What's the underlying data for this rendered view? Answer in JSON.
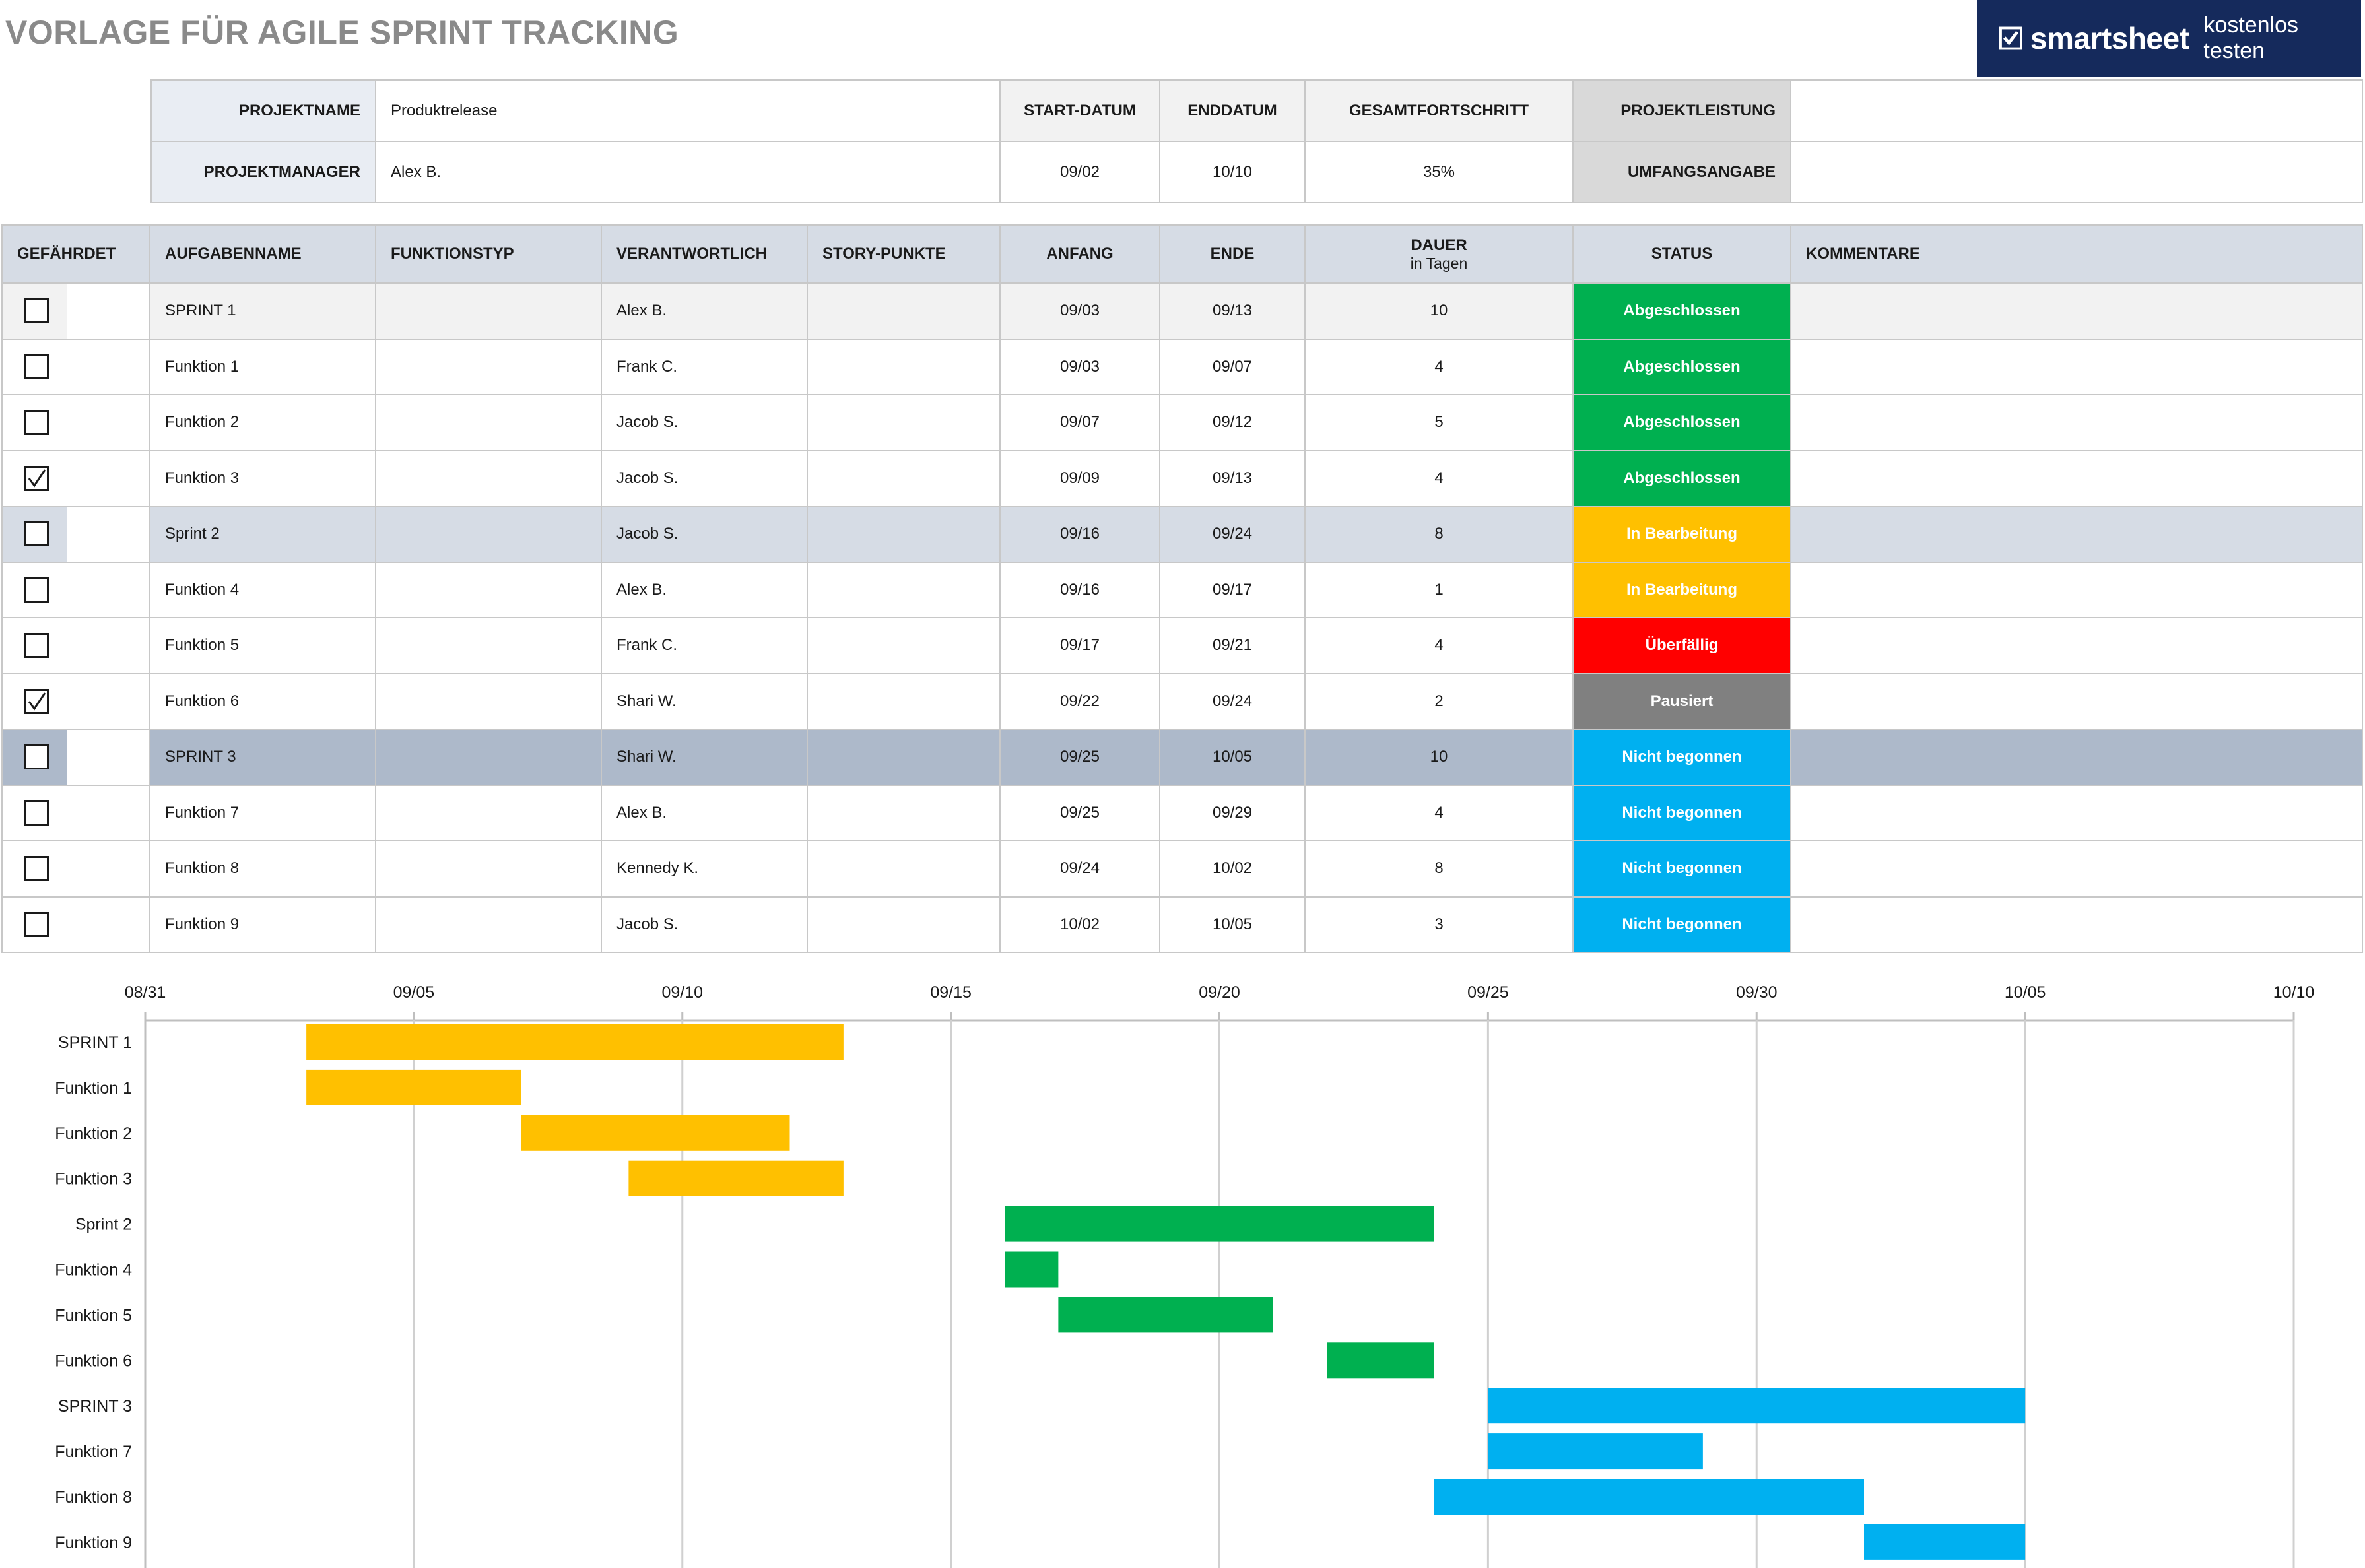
{
  "title": "VORLAGE FÜR AGILE SPRINT TRACKING",
  "brand": {
    "name": "smartsheet",
    "cta": "kostenlos testen",
    "icon": "smartsheet-check-icon"
  },
  "summary": {
    "project_name_label": "PROJEKTNAME",
    "project_name": "Produktrelease",
    "project_manager_label": "PROJEKTMANAGER",
    "project_manager": "Alex B.",
    "start_label": "START-DATUM",
    "start": "09/02",
    "end_label": "ENDDATUM",
    "end": "10/10",
    "progress_label": "GESAMTFORTSCHRITT",
    "progress": "35%",
    "performance_label": "PROJEKTLEISTUNG",
    "performance": "",
    "scope_label": "UMFANGSANGABE",
    "scope": ""
  },
  "table": {
    "headers": {
      "flag": "GEFÄHRDET",
      "task": "AUFGABENNAME",
      "type": "FUNKTIONSTYP",
      "owner": "VERANTWORTLICH",
      "points": "STORY-PUNKTE",
      "start": "ANFANG",
      "end": "ENDE",
      "duration": "DAUER",
      "duration_sub": "in Tagen",
      "status": "STATUS",
      "comments": "KOMMENTARE"
    },
    "rows": [
      {
        "flag": false,
        "task": "SPRINT 1",
        "type": "",
        "owner": "Alex B.",
        "points": "",
        "start": "09/03",
        "end": "09/13",
        "duration": "10",
        "status": "Abgeschlossen",
        "comments": ""
      },
      {
        "flag": false,
        "task": "Funktion 1",
        "type": "",
        "owner": "Frank C.",
        "points": "",
        "start": "09/03",
        "end": "09/07",
        "duration": "4",
        "status": "Abgeschlossen",
        "comments": ""
      },
      {
        "flag": false,
        "task": "Funktion 2",
        "type": "",
        "owner": "Jacob S.",
        "points": "",
        "start": "09/07",
        "end": "09/12",
        "duration": "5",
        "status": "Abgeschlossen",
        "comments": ""
      },
      {
        "flag": true,
        "task": "Funktion 3",
        "type": "",
        "owner": "Jacob S.",
        "points": "",
        "start": "09/09",
        "end": "09/13",
        "duration": "4",
        "status": "Abgeschlossen",
        "comments": ""
      },
      {
        "flag": false,
        "task": "Sprint 2",
        "type": "",
        "owner": "Jacob S.",
        "points": "",
        "start": "09/16",
        "end": "09/24",
        "duration": "8",
        "status": "In Bearbeitung",
        "comments": ""
      },
      {
        "flag": false,
        "task": "Funktion 4",
        "type": "",
        "owner": "Alex B.",
        "points": "",
        "start": "09/16",
        "end": "09/17",
        "duration": "1",
        "status": "In Bearbeitung",
        "comments": ""
      },
      {
        "flag": false,
        "task": "Funktion 5",
        "type": "",
        "owner": "Frank C.",
        "points": "",
        "start": "09/17",
        "end": "09/21",
        "duration": "4",
        "status": "Überfällig",
        "comments": ""
      },
      {
        "flag": true,
        "task": "Funktion 6",
        "type": "",
        "owner": "Shari W.",
        "points": "",
        "start": "09/22",
        "end": "09/24",
        "duration": "2",
        "status": "Pausiert",
        "comments": ""
      },
      {
        "flag": false,
        "task": "SPRINT 3",
        "type": "",
        "owner": "Shari W.",
        "points": "",
        "start": "09/25",
        "end": "10/05",
        "duration": "10",
        "status": "Nicht begonnen",
        "comments": ""
      },
      {
        "flag": false,
        "task": "Funktion 7",
        "type": "",
        "owner": "Alex B.",
        "points": "",
        "start": "09/25",
        "end": "09/29",
        "duration": "4",
        "status": "Nicht begonnen",
        "comments": ""
      },
      {
        "flag": false,
        "task": "Funktion 8",
        "type": "",
        "owner": "Kennedy K.",
        "points": "",
        "start": "09/24",
        "end": "10/02",
        "duration": "8",
        "status": "Nicht begonnen",
        "comments": ""
      },
      {
        "flag": false,
        "task": "Funktion 9",
        "type": "",
        "owner": "Jacob S.",
        "points": "",
        "start": "10/02",
        "end": "10/05",
        "duration": "3",
        "status": "Nicht begonnen",
        "comments": ""
      }
    ],
    "status_colors": {
      "Abgeschlossen": "#00b050",
      "In Bearbeitung": "#ffc000",
      "Überfällig": "#ff0000",
      "Pausiert": "#808080",
      "Nicht begonnen": "#00b0f0"
    }
  },
  "chart_data": {
    "type": "gantt",
    "x_ticks": [
      "08/31",
      "09/05",
      "09/10",
      "09/15",
      "09/20",
      "09/25",
      "09/30",
      "10/05",
      "10/10"
    ],
    "xlim": [
      "08/31",
      "10/10"
    ],
    "grid": true,
    "tasks": [
      {
        "name": "SPRINT 1",
        "start": "09/03",
        "end": "09/13",
        "color": "#ffc000"
      },
      {
        "name": "Funktion 1",
        "start": "09/03",
        "end": "09/07",
        "color": "#ffc000"
      },
      {
        "name": "Funktion 2",
        "start": "09/07",
        "end": "09/12",
        "color": "#ffc000"
      },
      {
        "name": "Funktion 3",
        "start": "09/09",
        "end": "09/13",
        "color": "#ffc000"
      },
      {
        "name": "Sprint 2",
        "start": "09/16",
        "end": "09/24",
        "color": "#00b050"
      },
      {
        "name": "Funktion 4",
        "start": "09/16",
        "end": "09/17",
        "color": "#00b050"
      },
      {
        "name": "Funktion 5",
        "start": "09/17",
        "end": "09/21",
        "color": "#00b050"
      },
      {
        "name": "Funktion 6",
        "start": "09/22",
        "end": "09/24",
        "color": "#00b050"
      },
      {
        "name": "SPRINT 3",
        "start": "09/25",
        "end": "10/05",
        "color": "#00b0f0"
      },
      {
        "name": "Funktion 7",
        "start": "09/25",
        "end": "09/29",
        "color": "#00b0f0"
      },
      {
        "name": "Funktion 8",
        "start": "09/24",
        "end": "10/02",
        "color": "#00b0f0"
      },
      {
        "name": "Funktion 9",
        "start": "10/02",
        "end": "10/05",
        "color": "#00b0f0"
      }
    ]
  }
}
